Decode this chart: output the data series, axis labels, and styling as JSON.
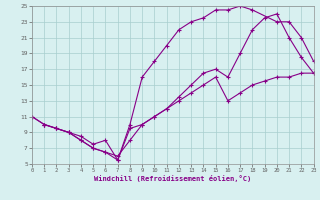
{
  "xlabel": "Windchill (Refroidissement éolien,°C)",
  "xlim": [
    0,
    23
  ],
  "ylim": [
    5,
    25
  ],
  "xticks": [
    0,
    1,
    2,
    3,
    4,
    5,
    6,
    7,
    8,
    9,
    10,
    11,
    12,
    13,
    14,
    15,
    16,
    17,
    18,
    19,
    20,
    21,
    22,
    23
  ],
  "yticks": [
    5,
    7,
    9,
    11,
    13,
    15,
    17,
    19,
    21,
    23,
    25
  ],
  "line_color": "#880088",
  "bg_color": "#d8f0f0",
  "grid_color": "#a8cece",
  "curve1_x": [
    0,
    1,
    2,
    3,
    4,
    5,
    6,
    7,
    8,
    9,
    10,
    11,
    12,
    13,
    14,
    15,
    16,
    17,
    18,
    20,
    21,
    22,
    23
  ],
  "curve1_y": [
    11,
    10,
    9.5,
    9,
    8,
    7,
    6.5,
    5.5,
    10,
    16,
    18,
    20,
    22,
    23,
    23.5,
    24.5,
    24.5,
    25,
    24.5,
    23,
    23,
    21,
    18
  ],
  "curve2_x": [
    0,
    1,
    2,
    3,
    4,
    5,
    6,
    7,
    8,
    9,
    10,
    11,
    12,
    13,
    14,
    15,
    16,
    17,
    18,
    19,
    20,
    21,
    22,
    23
  ],
  "curve2_y": [
    11,
    10,
    9.5,
    9,
    8,
    7,
    6.5,
    6,
    8,
    10,
    11,
    12,
    13,
    14,
    15,
    16,
    13,
    14,
    15,
    15.5,
    16,
    16,
    16.5,
    16.5
  ],
  "curve3_x": [
    1,
    2,
    3,
    4,
    5,
    6,
    7,
    8,
    9,
    10,
    11,
    12,
    13,
    14,
    15,
    16,
    17,
    18,
    19,
    20,
    21,
    22,
    23
  ],
  "curve3_y": [
    10,
    9.5,
    9,
    8.5,
    7.5,
    8,
    5.5,
    9.5,
    10,
    11,
    12,
    13.5,
    15,
    16.5,
    17,
    16,
    19,
    22,
    23.5,
    24,
    21,
    18.5,
    16.5
  ]
}
